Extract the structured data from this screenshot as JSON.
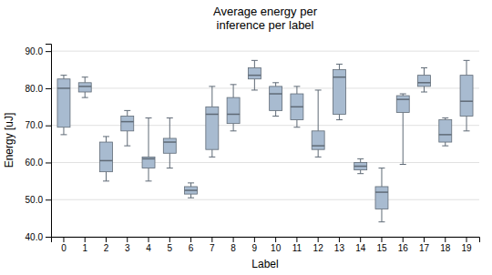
{
  "chart_data": {
    "type": "box",
    "title": "Average energy per\ninference per label",
    "x_label": "Label",
    "y_label": "Energy [uJ]",
    "categories": [
      "0",
      "1",
      "2",
      "3",
      "4",
      "5",
      "6",
      "7",
      "8",
      "9",
      "10",
      "11",
      "12",
      "13",
      "14",
      "15",
      "16",
      "17",
      "18",
      "19"
    ],
    "whislo": [
      67.5,
      77.5,
      55.0,
      64.5,
      55.0,
      58.5,
      50.5,
      61.5,
      68.5,
      79.5,
      72.5,
      69.5,
      61.5,
      71.5,
      57.0,
      44.0,
      59.5,
      79.0,
      64.5,
      68.5
    ],
    "q1": [
      69.5,
      79.0,
      57.5,
      68.5,
      58.5,
      62.5,
      51.5,
      63.5,
      70.5,
      82.5,
      74.0,
      71.5,
      63.5,
      73.0,
      58.0,
      47.5,
      73.5,
      80.5,
      65.5,
      72.5
    ],
    "med": [
      80.0,
      80.5,
      60.5,
      71.0,
      61.0,
      65.5,
      52.5,
      73.0,
      73.0,
      83.5,
      78.5,
      75.0,
      64.5,
      83.0,
      59.0,
      52.0,
      77.0,
      81.5,
      67.5,
      76.5
    ],
    "q3": [
      82.5,
      81.5,
      65.5,
      72.5,
      61.5,
      66.5,
      53.5,
      75.0,
      77.5,
      85.5,
      80.5,
      78.5,
      68.5,
      85.0,
      60.0,
      53.5,
      78.0,
      83.5,
      71.5,
      83.5
    ],
    "whishi": [
      83.5,
      83.0,
      67.0,
      74.0,
      72.0,
      72.0,
      54.5,
      80.5,
      81.0,
      87.5,
      81.5,
      80.5,
      79.5,
      86.5,
      61.0,
      58.5,
      78.5,
      85.5,
      72.0,
      87.5
    ],
    "color": "#a8bbd0",
    "ylim": [
      40.0,
      92.0
    ],
    "yticks": [
      {
        "value": 40.0,
        "label": "40.0"
      },
      {
        "value": 50.0,
        "label": "50.0"
      },
      {
        "value": 60.0,
        "label": "60.0"
      },
      {
        "value": 70.0,
        "label": "70.0"
      },
      {
        "value": 80.0,
        "label": "80.0"
      },
      {
        "value": 90.0,
        "label": "90.0"
      }
    ],
    "grid": true
  }
}
